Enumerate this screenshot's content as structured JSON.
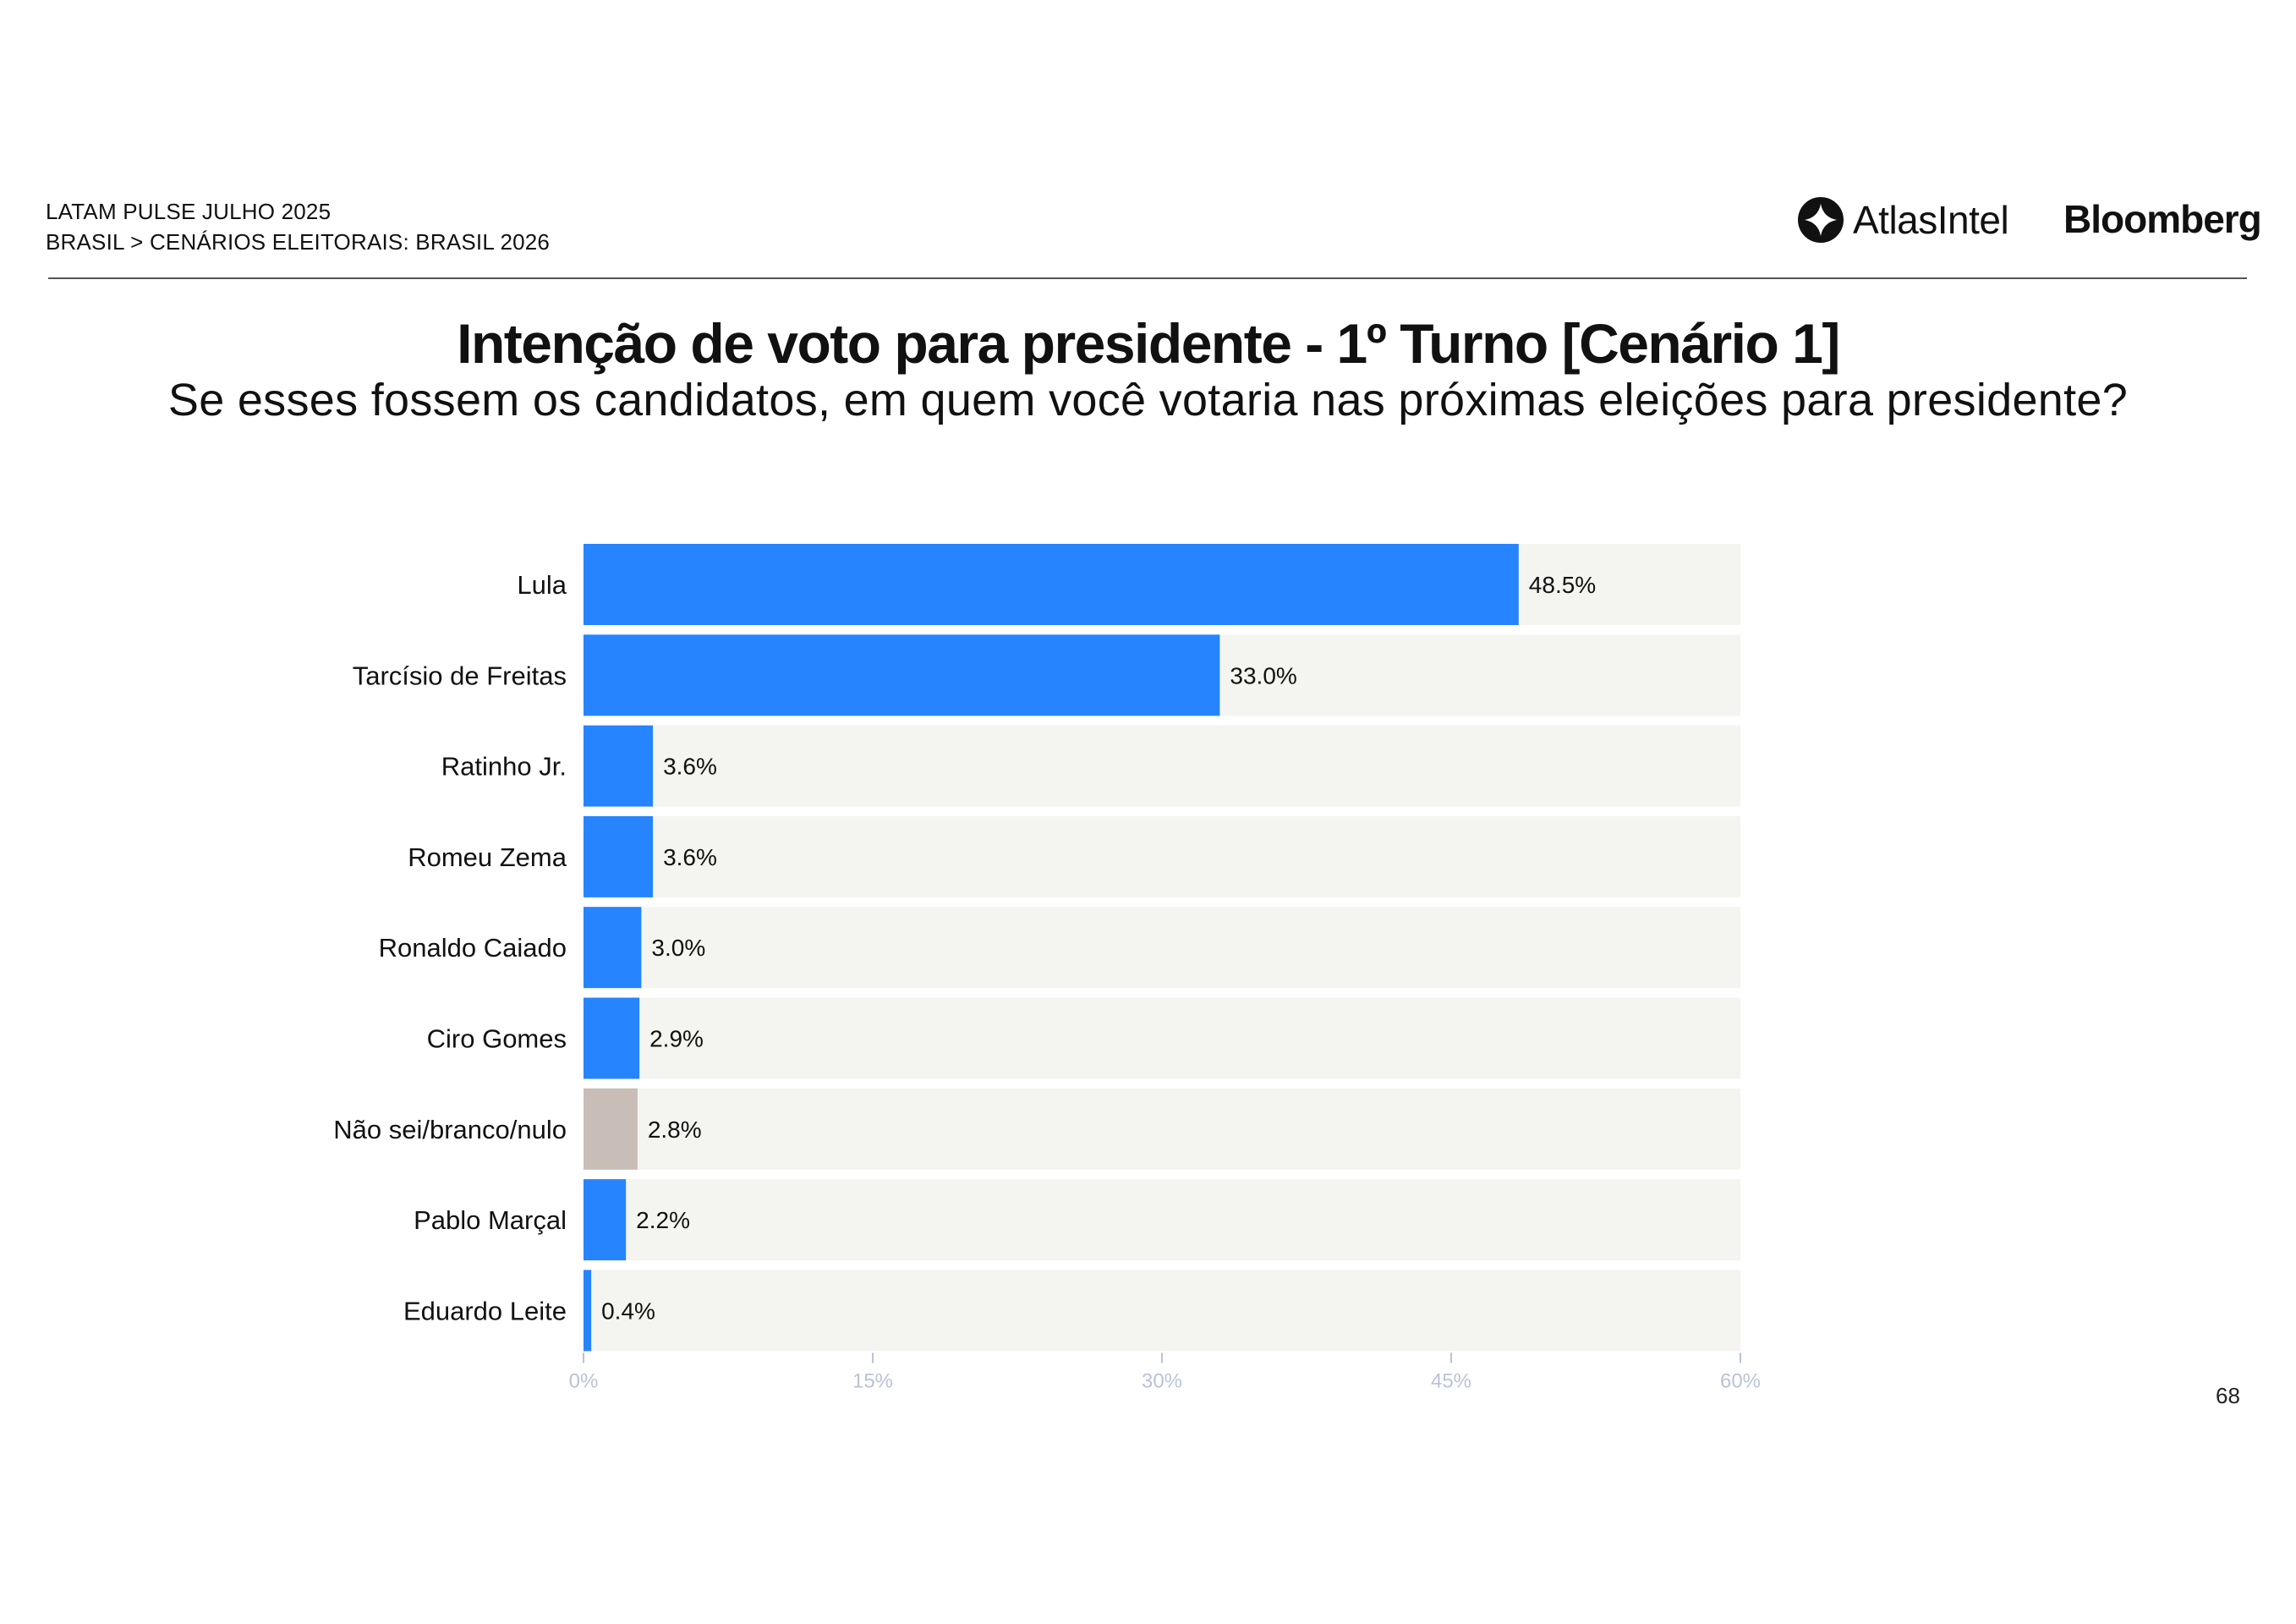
{
  "header": {
    "line1": "LATAM PULSE JULHO 2025",
    "line2": "BRASIL > CENÁRIOS ELEITORAIS: BRASIL 2026",
    "brand1": "AtlasIntel",
    "brand2": "Bloomberg"
  },
  "title": "Intenção de voto para presidente - 1º Turno [Cenário 1]",
  "subtitle": "Se esses fossem os candidatos, em quem você votaria nas próximas eleições para presidente?",
  "page_number": "68",
  "colors": {
    "bar": "#2684FF",
    "bar_neutral": "#C8BEB7",
    "track": "#F4F4F1",
    "tick": "#B9C3D6"
  },
  "chart_data": {
    "type": "bar",
    "orientation": "horizontal",
    "categories": [
      "Lula",
      "Tarcísio de Freitas",
      "Ratinho Jr.",
      "Romeu Zema",
      "Ronaldo Caiado",
      "Ciro Gomes",
      "Não sei/branco/nulo",
      "Pablo Marçal",
      "Eduardo Leite"
    ],
    "values": [
      48.5,
      33.0,
      3.6,
      3.6,
      3.0,
      2.9,
      2.8,
      2.2,
      0.4
    ],
    "value_labels": [
      "48.5%",
      "33.0%",
      "3.6%",
      "3.6%",
      "3.0%",
      "2.9%",
      "2.8%",
      "2.2%",
      "0.4%"
    ],
    "bar_color_keys": [
      "bar",
      "bar",
      "bar",
      "bar",
      "bar",
      "bar",
      "bar_neutral",
      "bar",
      "bar"
    ],
    "xlim": [
      0,
      60
    ],
    "xticks": [
      0,
      15,
      30,
      45,
      60
    ],
    "xtick_labels": [
      "0%",
      "15%",
      "30%",
      "45%",
      "60%"
    ],
    "grid": false
  }
}
